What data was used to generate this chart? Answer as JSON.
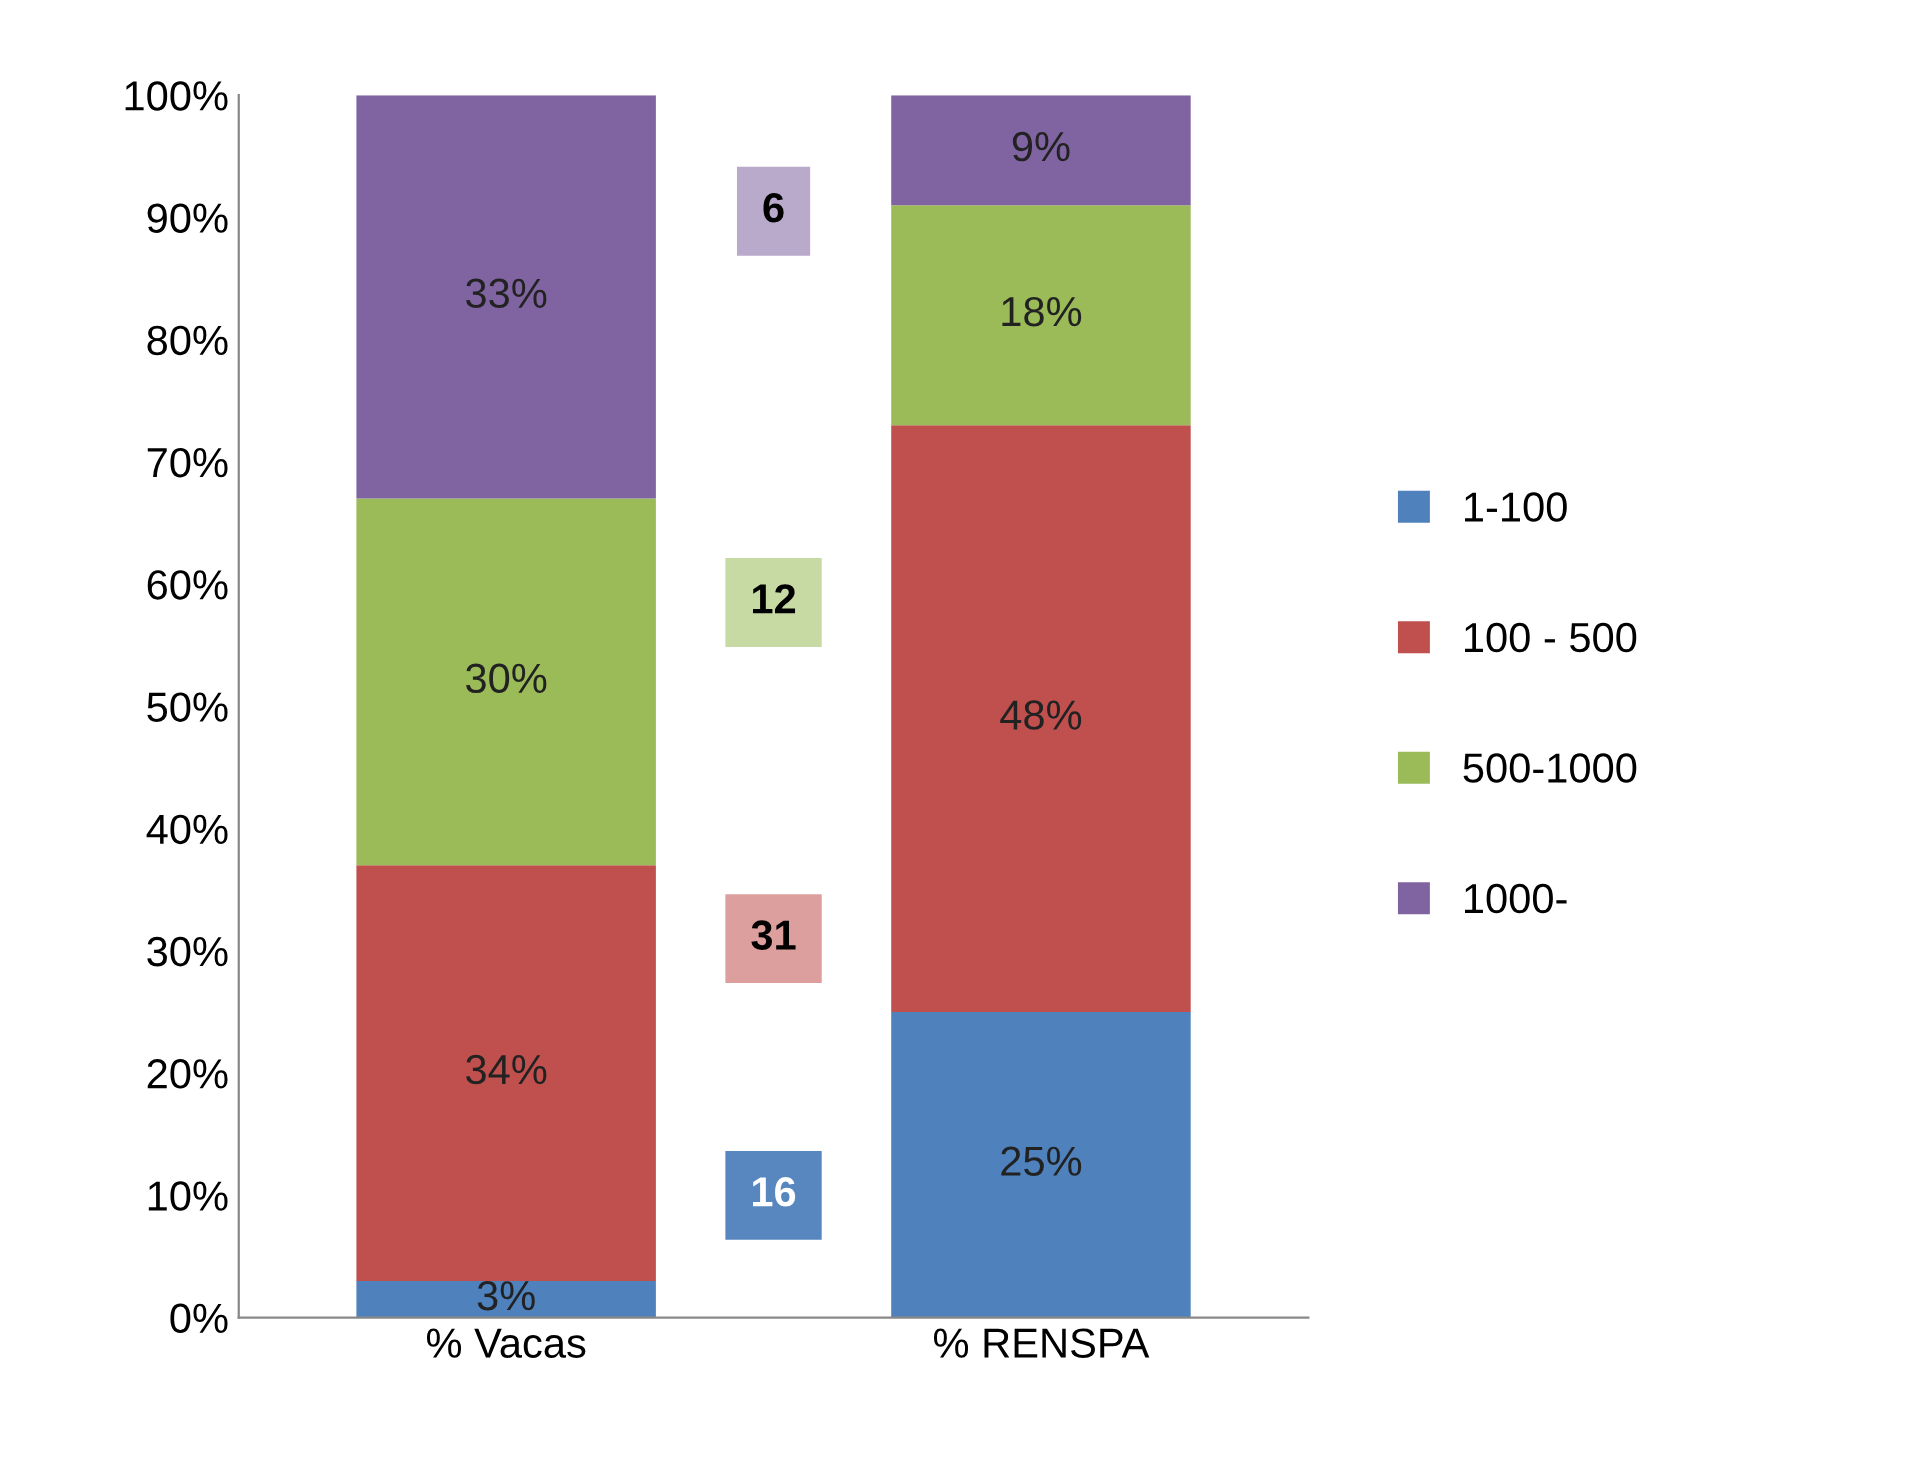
{
  "chart_data": {
    "type": "bar",
    "stacked": true,
    "categories": [
      "% Vacas",
      "% RENSPA"
    ],
    "series": [
      {
        "name": "1-100",
        "color": "#4f81bd",
        "values": [
          3,
          25
        ],
        "value_labels": [
          "3%",
          "25%"
        ]
      },
      {
        "name": "100 - 500",
        "color": "#c0504d",
        "values": [
          34,
          48
        ],
        "value_labels": [
          "34%",
          "48%"
        ]
      },
      {
        "name": "500-1000",
        "color": "#9bbb59",
        "values": [
          30,
          18
        ],
        "value_labels": [
          "30%",
          "18%"
        ]
      },
      {
        "name": "1000-",
        "color": "#8064a2",
        "values": [
          33,
          9
        ],
        "value_labels": [
          "33%",
          "9%"
        ]
      }
    ],
    "ylim": [
      0,
      100
    ],
    "yticks": [
      {
        "value": 0,
        "label": "0%"
      },
      {
        "value": 10,
        "label": "10%"
      },
      {
        "value": 20,
        "label": "20%"
      },
      {
        "value": 30,
        "label": "30%"
      },
      {
        "value": 40,
        "label": "40%"
      },
      {
        "value": 50,
        "label": "50%"
      },
      {
        "value": 60,
        "label": "60%"
      },
      {
        "value": 70,
        "label": "70%"
      },
      {
        "value": 80,
        "label": "80%"
      },
      {
        "value": 90,
        "label": "90%"
      },
      {
        "value": 100,
        "label": "100%"
      }
    ],
    "annotations": [
      "16",
      "31",
      "12",
      "6"
    ],
    "grid": false,
    "legend": "right"
  }
}
